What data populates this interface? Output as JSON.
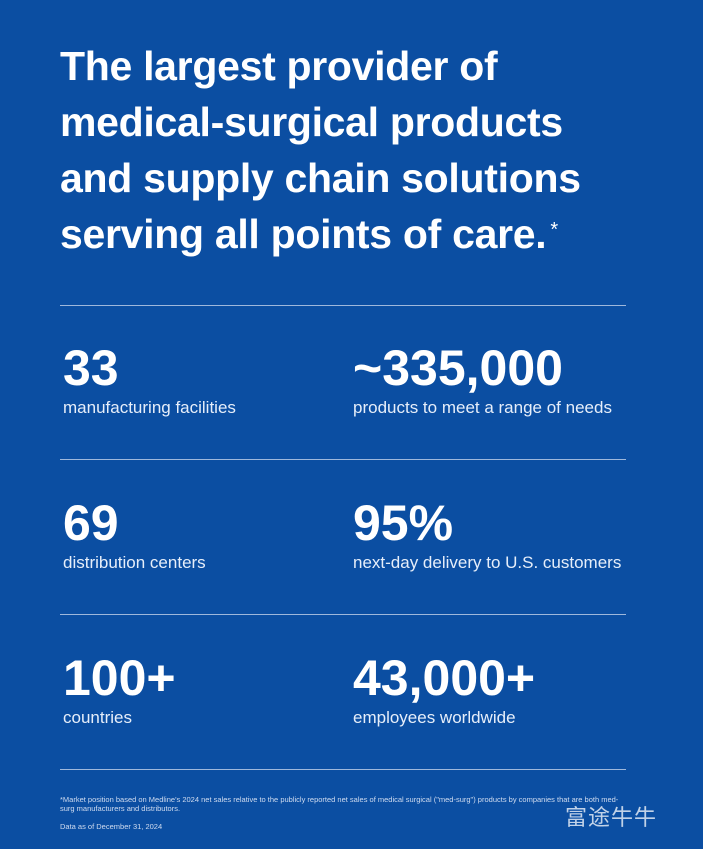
{
  "header": {
    "title_lines": [
      "The largest provider of",
      "medical-surgical products",
      "and supply chain solutions",
      "serving all points of care."
    ],
    "title_mark": "*"
  },
  "stats": [
    {
      "value": "33",
      "label": "manufacturing facilities"
    },
    {
      "value": "~335,000",
      "label": "products to meet a range of needs"
    },
    {
      "value": "69",
      "label": "distribution centers"
    },
    {
      "value": "95%",
      "label": "next-day delivery to U.S. customers"
    },
    {
      "value": "100+",
      "label": "countries"
    },
    {
      "value": "43,000+",
      "label": "employees worldwide"
    }
  ],
  "footnote": {
    "text": "*Market position based on Medline's 2024 net sales relative to the publicly reported net sales of medical surgical (\"med-surg\") products by companies that are both med-surg manufacturers and distributors.",
    "date": "Data as of December 31, 2024"
  },
  "watermark": "富途牛牛"
}
